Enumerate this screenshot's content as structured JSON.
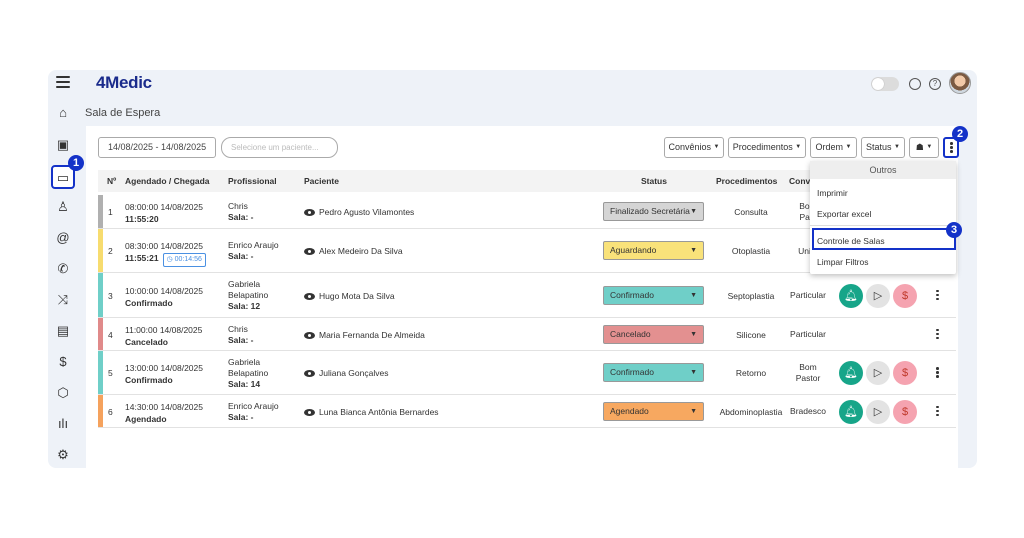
{
  "app": {
    "logo": "4Medic"
  },
  "page": {
    "title": "Sala de Espera"
  },
  "toolbar": {
    "date_range": "14/08/2025 - 14/08/2025",
    "patient_placeholder": "Selecione um paciente...",
    "filters": [
      "Convênios",
      "Procedimentos",
      "Ordem",
      "Status"
    ]
  },
  "callouts": [
    "1",
    "2",
    "3"
  ],
  "table": {
    "headers": [
      "Nº",
      "Agendado / Chegada",
      "Profissional",
      "Paciente",
      "Status",
      "Procedimentos",
      "Conv"
    ],
    "rows": [
      {
        "num": "1",
        "scheduled": "08:00:00 14/08/2025",
        "arrival": "11:55:20",
        "timer": "",
        "prof": [
          "Chris"
        ],
        "room": "Sala: -",
        "patient": "Pedro Agusto Vilamontes",
        "status": "Finalizado Secretária",
        "proc": "Consulta",
        "conv": [
          "Bom",
          "Past"
        ],
        "bar_color": "#b0b0b0",
        "status_color": "#d5d5d5",
        "actions": false
      },
      {
        "num": "2",
        "scheduled": "08:30:00 14/08/2025",
        "arrival": "11:55:21",
        "timer": "00:14:56",
        "prof": [
          "Enrico Araujo"
        ],
        "room": "Sala: -",
        "patient": "Alex Medeiro Da Silva",
        "status": "Aguardando",
        "proc": "Otoplastia",
        "conv": [
          "Unim"
        ],
        "bar_color": "#f7dc6f",
        "status_color": "#f9e27a",
        "actions": false
      },
      {
        "num": "3",
        "scheduled": "10:00:00 14/08/2025",
        "arrival": "Confirmado",
        "timer": "",
        "prof": [
          "Gabriela",
          "Belapatino"
        ],
        "room": "Sala: 12",
        "patient": "Hugo Mota Da Silva",
        "status": "Confirmado",
        "proc": "Septoplastia",
        "conv": [
          "Particular"
        ],
        "bar_color": "#6fcfc8",
        "status_color": "#6fcfc8",
        "actions": true
      },
      {
        "num": "4",
        "scheduled": "11:00:00 14/08/2025",
        "arrival": "Cancelado",
        "timer": "",
        "prof": [
          "Chris"
        ],
        "room": "Sala: -",
        "patient": "Maria Fernanda De Almeida",
        "status": "Cancelado",
        "proc": "Silicone",
        "conv": [
          "Particular"
        ],
        "bar_color": "#e08a8a",
        "status_color": "#e39090",
        "actions": false
      },
      {
        "num": "5",
        "scheduled": "13:00:00 14/08/2025",
        "arrival": "Confirmado",
        "timer": "",
        "prof": [
          "Gabriela",
          "Belapatino"
        ],
        "room": "Sala: 14",
        "patient": "Juliana Gonçalves",
        "status": "Confirmado",
        "proc": "Retorno",
        "conv": [
          "Bom",
          "Pastor"
        ],
        "bar_color": "#6fcfc8",
        "status_color": "#6fcfc8",
        "actions": true
      },
      {
        "num": "6",
        "scheduled": "14:30:00 14/08/2025",
        "arrival": "Agendado",
        "timer": "",
        "prof": [
          "Enrico Araujo"
        ],
        "room": "Sala: -",
        "patient": "Luna Bianca Antônia Bernardes",
        "status": "Agendado",
        "proc": "Abdominoplastia",
        "conv": [
          "Bradesco"
        ],
        "bar_color": "#f5a25d",
        "status_color": "#f7a860",
        "actions": true
      }
    ]
  },
  "dropdown": {
    "header": "Outros",
    "items": [
      "Imprimir",
      "Exportar excel",
      "Controle de Salas",
      "Limpar Filtros"
    ]
  },
  "colors": {
    "brand": "#1a2b8c",
    "callout": "#1432c8",
    "bell": "#17a589",
    "money": "#f5a3b0"
  }
}
